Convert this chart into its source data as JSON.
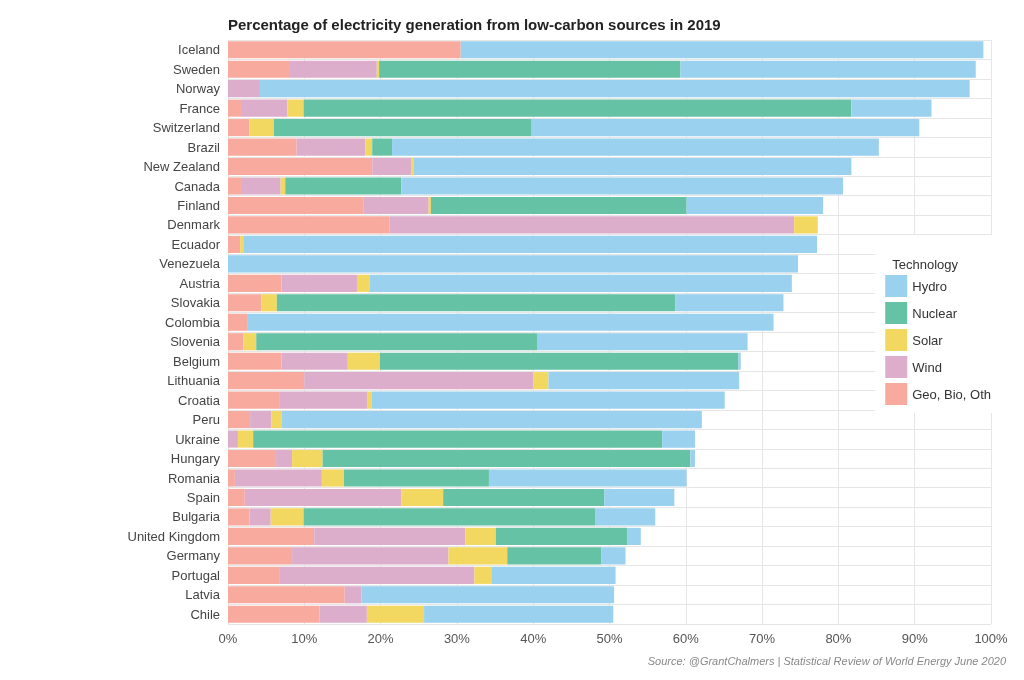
{
  "chart_data": {
    "type": "bar",
    "orientation": "horizontal",
    "stacked": true,
    "title": "Percentage of electricity generation from low-carbon sources in 2019",
    "legend_title": "Technology",
    "annotations": [
      "Source: @GrantChalmers | Statistical Review of World Energy June 2020"
    ],
    "categories": [
      "Iceland",
      "Sweden",
      "Norway",
      "France",
      "Switzerland",
      "Brazil",
      "New Zealand",
      "Canada",
      "Finland",
      "Denmark",
      "Ecuador",
      "Venezuela",
      "Austria",
      "Slovakia",
      "Colombia",
      "Slovenia",
      "Belgium",
      "Lithuania",
      "Croatia",
      "Peru",
      "Ukraine",
      "Hungary",
      "Romania",
      "Spain",
      "Bulgaria",
      "United Kingdom",
      "Germany",
      "Portugal",
      "Latvia",
      "Chile"
    ],
    "series": [
      {
        "name": "Geo, Bio, Oth",
        "color": "#f9aa9e",
        "values": [
          30.5,
          8,
          0,
          1.7,
          2.8,
          9,
          18.9,
          1.7,
          17.8,
          21.2,
          1.6,
          0,
          7,
          4.4,
          2.5,
          2,
          7,
          10,
          6.7,
          2.9,
          0,
          6.3,
          0.9,
          2.2,
          2.8,
          11.3,
          8.4,
          6.8,
          15.3,
          12
        ]
      },
      {
        "name": "Wind",
        "color": "#dcaecc",
        "values": [
          0,
          11.5,
          4.2,
          6.1,
          0,
          9,
          5.1,
          5.2,
          8.5,
          53,
          0,
          0,
          9.9,
          0,
          0,
          0,
          8.7,
          30,
          11.6,
          2.8,
          1.3,
          2.1,
          11.4,
          20.5,
          2.8,
          19.8,
          20.5,
          25.5,
          2.2,
          6.2
        ]
      },
      {
        "name": "Solar",
        "color": "#f2d860",
        "values": [
          0,
          0.3,
          0,
          2.1,
          3.2,
          0.9,
          0.3,
          0.6,
          0.3,
          3.1,
          0.5,
          0,
          1.7,
          2,
          0,
          1.7,
          4.2,
          2,
          0.5,
          1.3,
          2,
          4,
          2.9,
          5.5,
          4.3,
          4,
          7.7,
          2.2,
          0,
          7.5
        ]
      },
      {
        "name": "Nuclear",
        "color": "#66c2a5",
        "values": [
          0,
          39.5,
          0,
          71.8,
          33.8,
          2.6,
          0,
          15.2,
          33.5,
          0,
          0,
          0,
          0,
          52.2,
          0,
          36.8,
          47,
          0,
          0,
          0,
          53.6,
          48.2,
          19,
          21.1,
          38.2,
          17.2,
          12.3,
          0,
          0,
          0
        ]
      },
      {
        "name": "Hydro",
        "color": "#99d1ef",
        "values": [
          68.5,
          38.7,
          93,
          10.5,
          50.8,
          63.8,
          57.4,
          57.9,
          17.9,
          0,
          75.1,
          74.7,
          55.3,
          14.2,
          69,
          27.6,
          0.3,
          25,
          46.3,
          55.1,
          4.3,
          0.6,
          25.9,
          9.2,
          7.9,
          1.8,
          3.2,
          16.3,
          33.1,
          24.8
        ]
      }
    ],
    "xlim": [
      0,
      100
    ],
    "xticks": [
      {
        "value": 0,
        "label": "0%"
      },
      {
        "value": 10,
        "label": "10%"
      },
      {
        "value": 20,
        "label": "20%"
      },
      {
        "value": 30,
        "label": "30%"
      },
      {
        "value": 40,
        "label": "40%"
      },
      {
        "value": 50,
        "label": "50%"
      },
      {
        "value": 60,
        "label": "60%"
      },
      {
        "value": 70,
        "label": "70%"
      },
      {
        "value": 80,
        "label": "80%"
      },
      {
        "value": 90,
        "label": "90%"
      },
      {
        "value": 100,
        "label": "100%"
      }
    ],
    "grid": true,
    "legend": "right"
  }
}
